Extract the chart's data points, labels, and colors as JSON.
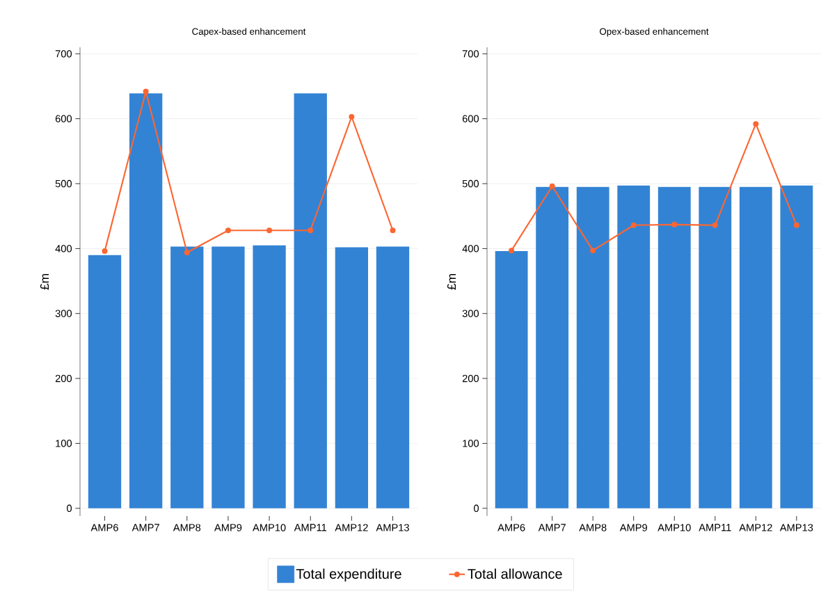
{
  "chart_data": [
    {
      "type": "bar",
      "title": "Capex-based enhancement",
      "ylabel": "£m",
      "categories": [
        "AMP6",
        "AMP7",
        "AMP8",
        "AMP9",
        "AMP10",
        "AMP11",
        "AMP12",
        "AMP13"
      ],
      "series": [
        {
          "name": "Total expenditure",
          "color": "#3383d4",
          "values": [
            390,
            639,
            403,
            403,
            405,
            639,
            402,
            403
          ]
        },
        {
          "name": "Total allowance",
          "type": "line",
          "color": "#fc6631",
          "marker": "circle",
          "values": [
            396,
            642,
            394,
            428,
            428,
            428,
            603,
            428
          ]
        }
      ],
      "ylim": [
        -12,
        710
      ],
      "yticks": [
        0,
        100,
        200,
        300,
        400,
        500,
        600,
        700
      ],
      "grid": "y",
      "legend": "bottom"
    },
    {
      "type": "bar",
      "title": "Opex-based enhancement",
      "ylabel": "£m",
      "categories": [
        "AMP6",
        "AMP7",
        "AMP8",
        "AMP9",
        "AMP10",
        "AMP11",
        "AMP12",
        "AMP13"
      ],
      "series": [
        {
          "color": "#3383d4",
          "values": [
            396,
            495,
            495,
            497,
            495,
            495,
            495,
            497
          ]
        },
        {
          "type": "line",
          "color": "#fc6631",
          "marker": "circle",
          "values": [
            397,
            496,
            397,
            436,
            437,
            436,
            592,
            436
          ]
        }
      ],
      "ylim": [
        -12,
        710
      ],
      "yticks": [
        0,
        100,
        200,
        300,
        400,
        500,
        600,
        700
      ],
      "grid": "y"
    }
  ]
}
